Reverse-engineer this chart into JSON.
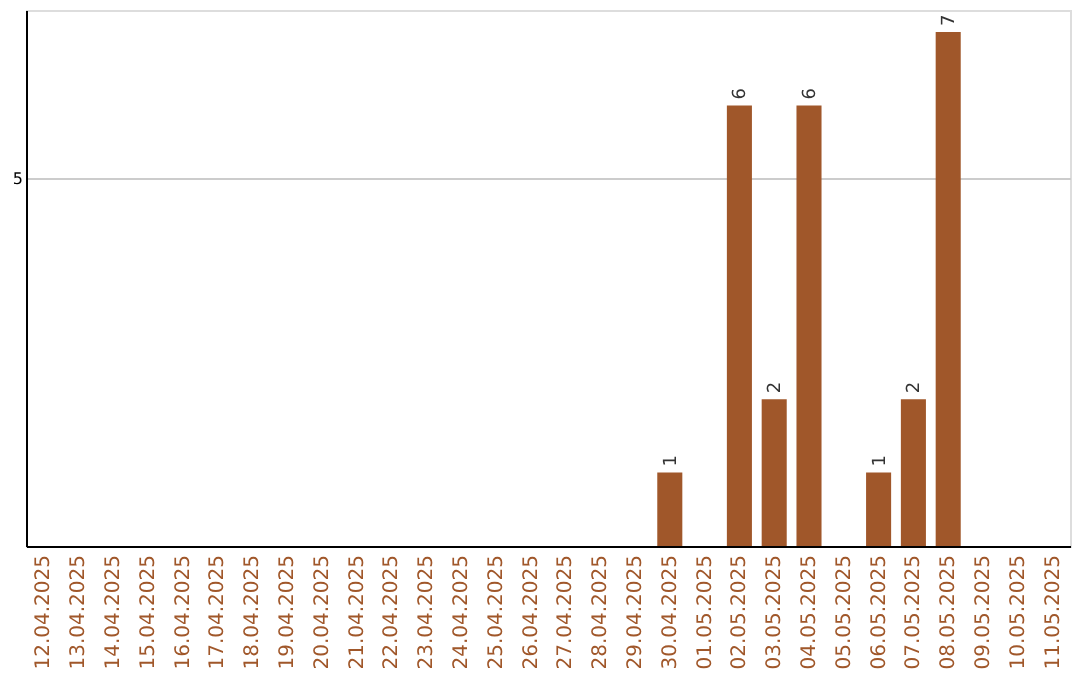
{
  "chart_data": {
    "type": "bar",
    "categories": [
      "12.04.2025",
      "13.04.2025",
      "14.04.2025",
      "15.04.2025",
      "16.04.2025",
      "17.04.2025",
      "18.04.2025",
      "19.04.2025",
      "20.04.2025",
      "21.04.2025",
      "22.04.2025",
      "23.04.2025",
      "24.04.2025",
      "25.04.2025",
      "26.04.2025",
      "27.04.2025",
      "28.04.2025",
      "29.04.2025",
      "30.04.2025",
      "01.05.2025",
      "02.05.2025",
      "03.05.2025",
      "04.05.2025",
      "05.05.2025",
      "06.05.2025",
      "07.05.2025",
      "08.05.2025",
      "09.05.2025",
      "10.05.2025",
      "11.05.2025"
    ],
    "values": [
      null,
      null,
      null,
      null,
      null,
      null,
      null,
      null,
      null,
      null,
      null,
      null,
      null,
      null,
      null,
      null,
      null,
      null,
      1,
      null,
      6,
      2,
      6,
      null,
      1,
      2,
      7,
      null,
      null,
      null
    ],
    "data_labels": true,
    "color": "#a0572a",
    "ylim": [
      0,
      7.3
    ],
    "yticks": [
      5
    ],
    "grid": "y"
  }
}
